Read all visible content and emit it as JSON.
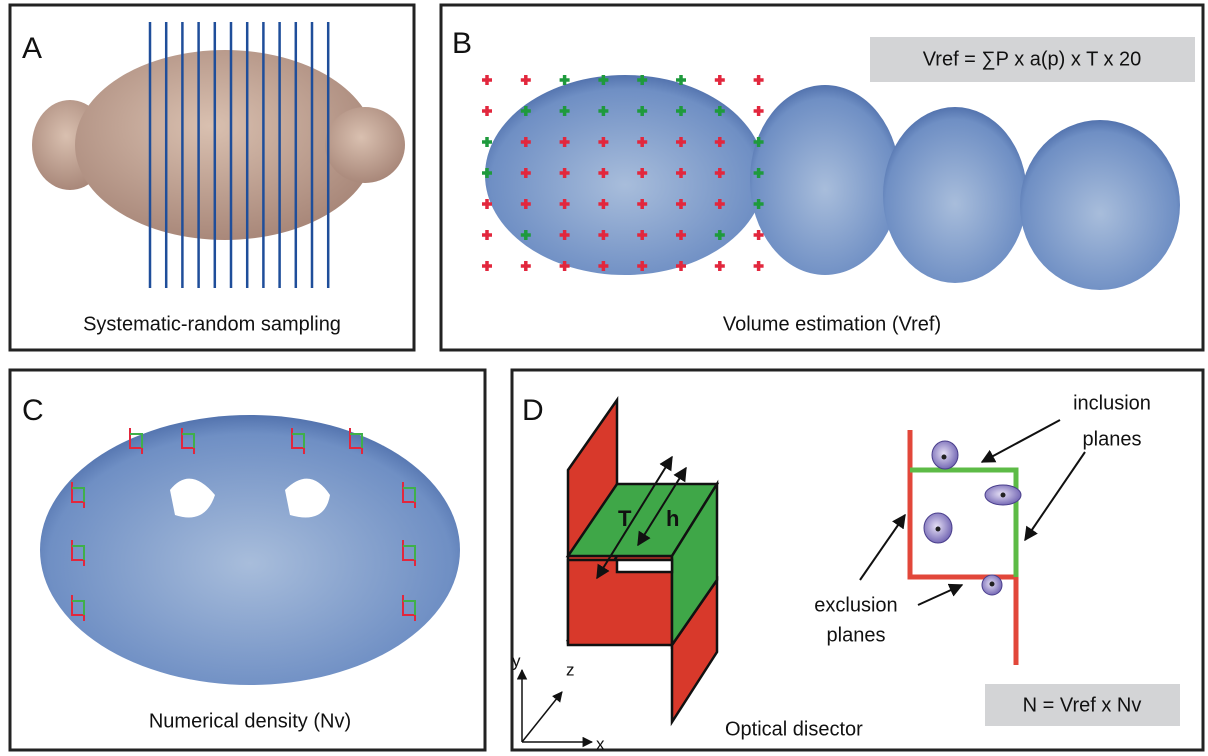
{
  "panels": {
    "a": {
      "label": "A",
      "caption": "Systematic-random sampling"
    },
    "b": {
      "label": "B",
      "formula": "Vref = ∑P x a(p) x T x 20",
      "caption": "Volume estimation (Vref)"
    },
    "c": {
      "label": "C",
      "caption": "Numerical density (Nv)"
    },
    "d": {
      "label": "D",
      "caption": "Optical disector",
      "formula": "N = Vref x Nv",
      "box_labels": [
        "T",
        "h"
      ],
      "inclusion": [
        "inclusion",
        "planes"
      ],
      "exclusion": [
        "exclusion",
        "planes"
      ],
      "axes": {
        "x": "x",
        "y": "y",
        "z": "z"
      }
    }
  }
}
